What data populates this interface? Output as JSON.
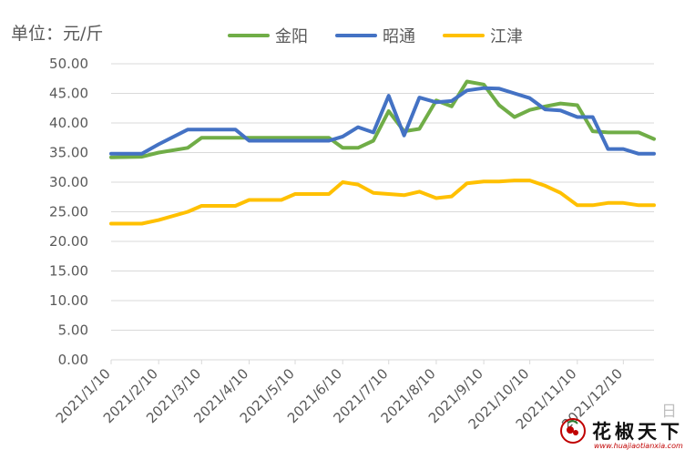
{
  "unit_label": "单位：元/斤",
  "axis_suffix": "日",
  "watermark": {
    "name": "花椒天下",
    "url": "www.huajiaotianxia.com",
    "icon": "pepper-logo-icon"
  },
  "chart_data": {
    "type": "line",
    "title": "",
    "xlabel": "",
    "ylabel": "单位：元/斤",
    "ylim": [
      0,
      50
    ],
    "yticks": [
      "0.00",
      "5.00",
      "10.00",
      "15.00",
      "20.00",
      "25.00",
      "30.00",
      "35.00",
      "40.00",
      "45.00",
      "50.00"
    ],
    "xlim": [
      "2021-01-10",
      "2021-12-30"
    ],
    "xticks": [
      "2021/1/10",
      "2021/2/10",
      "2021/3/10",
      "2021/4/10",
      "2021/5/10",
      "2021/6/10",
      "2021/7/10",
      "2021/8/10",
      "2021/9/10",
      "2021/10/10",
      "2021/11/10",
      "2021/12/10"
    ],
    "grid": "horizontal",
    "legend_position": "top",
    "series": [
      {
        "name": "金阳",
        "color": "#70ad47",
        "points": [
          [
            "2021-01-10",
            34.2
          ],
          [
            "2021-01-30",
            34.3
          ],
          [
            "2021-02-10",
            35.0
          ],
          [
            "2021-03-01",
            35.8
          ],
          [
            "2021-03-10",
            37.5
          ],
          [
            "2021-04-10",
            37.5
          ],
          [
            "2021-05-10",
            37.5
          ],
          [
            "2021-06-01",
            37.5
          ],
          [
            "2021-06-10",
            35.8
          ],
          [
            "2021-06-20",
            35.8
          ],
          [
            "2021-06-30",
            37.0
          ],
          [
            "2021-07-10",
            42.0
          ],
          [
            "2021-07-20",
            38.6
          ],
          [
            "2021-07-30",
            39.0
          ],
          [
            "2021-08-10",
            43.8
          ],
          [
            "2021-08-20",
            42.8
          ],
          [
            "2021-08-30",
            47.0
          ],
          [
            "2021-09-10",
            46.5
          ],
          [
            "2021-09-20",
            43.0
          ],
          [
            "2021-09-30",
            41.0
          ],
          [
            "2021-10-10",
            42.2
          ],
          [
            "2021-10-20",
            42.8
          ],
          [
            "2021-10-30",
            43.3
          ],
          [
            "2021-11-10",
            43.0
          ],
          [
            "2021-11-20",
            38.6
          ],
          [
            "2021-11-30",
            38.4
          ],
          [
            "2021-12-10",
            38.4
          ],
          [
            "2021-12-20",
            38.4
          ],
          [
            "2021-12-30",
            37.3
          ]
        ]
      },
      {
        "name": "昭通",
        "color": "#4472c4",
        "points": [
          [
            "2021-01-10",
            34.8
          ],
          [
            "2021-01-30",
            34.8
          ],
          [
            "2021-02-10",
            36.4
          ],
          [
            "2021-03-01",
            38.9
          ],
          [
            "2021-03-10",
            38.9
          ],
          [
            "2021-04-01",
            38.9
          ],
          [
            "2021-04-10",
            37.0
          ],
          [
            "2021-05-10",
            37.0
          ],
          [
            "2021-06-01",
            37.0
          ],
          [
            "2021-06-10",
            37.7
          ],
          [
            "2021-06-20",
            39.3
          ],
          [
            "2021-06-30",
            38.4
          ],
          [
            "2021-07-10",
            44.6
          ],
          [
            "2021-07-20",
            37.9
          ],
          [
            "2021-07-30",
            44.3
          ],
          [
            "2021-08-10",
            43.5
          ],
          [
            "2021-08-20",
            43.7
          ],
          [
            "2021-08-30",
            45.5
          ],
          [
            "2021-09-10",
            45.9
          ],
          [
            "2021-09-20",
            45.8
          ],
          [
            "2021-09-30",
            45.0
          ],
          [
            "2021-10-10",
            44.2
          ],
          [
            "2021-10-20",
            42.3
          ],
          [
            "2021-10-30",
            42.1
          ],
          [
            "2021-11-10",
            41.0
          ],
          [
            "2021-11-20",
            41.0
          ],
          [
            "2021-11-30",
            35.6
          ],
          [
            "2021-12-10",
            35.6
          ],
          [
            "2021-12-20",
            34.8
          ],
          [
            "2021-12-30",
            34.8
          ]
        ]
      },
      {
        "name": "江津",
        "color": "#ffc000",
        "points": [
          [
            "2021-01-10",
            23.0
          ],
          [
            "2021-01-30",
            23.0
          ],
          [
            "2021-02-10",
            23.6
          ],
          [
            "2021-03-01",
            25.0
          ],
          [
            "2021-03-10",
            26.0
          ],
          [
            "2021-04-01",
            26.0
          ],
          [
            "2021-04-10",
            27.0
          ],
          [
            "2021-05-01",
            27.0
          ],
          [
            "2021-05-10",
            28.0
          ],
          [
            "2021-06-01",
            28.0
          ],
          [
            "2021-06-10",
            30.0
          ],
          [
            "2021-06-20",
            29.6
          ],
          [
            "2021-06-30",
            28.2
          ],
          [
            "2021-07-10",
            28.0
          ],
          [
            "2021-07-20",
            27.8
          ],
          [
            "2021-07-30",
            28.4
          ],
          [
            "2021-08-10",
            27.3
          ],
          [
            "2021-08-20",
            27.6
          ],
          [
            "2021-08-30",
            29.8
          ],
          [
            "2021-09-10",
            30.1
          ],
          [
            "2021-09-20",
            30.1
          ],
          [
            "2021-09-30",
            30.3
          ],
          [
            "2021-10-10",
            30.3
          ],
          [
            "2021-10-20",
            29.4
          ],
          [
            "2021-10-30",
            28.2
          ],
          [
            "2021-11-10",
            26.1
          ],
          [
            "2021-11-20",
            26.1
          ],
          [
            "2021-11-30",
            26.5
          ],
          [
            "2021-12-10",
            26.5
          ],
          [
            "2021-12-20",
            26.1
          ],
          [
            "2021-12-30",
            26.1
          ]
        ]
      }
    ]
  }
}
